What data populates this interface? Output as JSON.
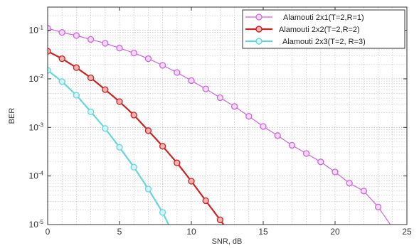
{
  "chart_data": {
    "type": "line",
    "xlabel": "SNR, dB",
    "ylabel": "BER",
    "xlim": [
      0,
      25
    ],
    "ylim": [
      1e-05,
      0.3
    ],
    "yscale": "log",
    "grid": true,
    "grid_style": "dotted",
    "legend_placement": "top-right",
    "x_ticks": [
      {
        "value": 0,
        "label": "0"
      },
      {
        "value": 5,
        "label": "5"
      },
      {
        "value": 10,
        "label": "10"
      },
      {
        "value": 15,
        "label": "15"
      },
      {
        "value": 20,
        "label": "20"
      },
      {
        "value": 25,
        "label": "25"
      }
    ],
    "y_ticks": [
      {
        "value": 0.1,
        "base": "10",
        "exp": "-1"
      },
      {
        "value": 0.01,
        "base": "10",
        "exp": "-2"
      },
      {
        "value": 0.001,
        "base": "10",
        "exp": "-3"
      },
      {
        "value": 0.0001,
        "base": "10",
        "exp": "-4"
      },
      {
        "value": 1e-05,
        "base": "10",
        "exp": "-5"
      }
    ],
    "series": [
      {
        "name": "Alamouti 2x1(T=2,R=1)",
        "color": "#cc66dd",
        "marker_fill": "#f3d8f8",
        "line_width": 1.2,
        "x": [
          0,
          1,
          2,
          3,
          4,
          5,
          6,
          7,
          8,
          9,
          10,
          11,
          12,
          13,
          14,
          15,
          16,
          17,
          18,
          19,
          20,
          21,
          22,
          23,
          24
        ],
        "y": [
          0.11,
          0.09,
          0.078,
          0.065,
          0.054,
          0.043,
          0.034,
          0.026,
          0.019,
          0.0135,
          0.0092,
          0.0062,
          0.0041,
          0.0027,
          0.0017,
          0.00105,
          0.00068,
          0.00043,
          0.00029,
          0.000195,
          0.000121,
          7.1e-05,
          4.9e-05,
          2.3e-05,
          8.6e-06
        ]
      },
      {
        "name": "Alamouti 2x2(T=2,R=2)",
        "color": "#cc2222",
        "marker_fill": "#f2b0b0",
        "line_width": 2.2,
        "x": [
          0,
          1,
          2,
          3,
          4,
          5,
          6,
          7,
          8,
          9,
          10,
          11,
          12,
          13
        ],
        "y": [
          0.037,
          0.026,
          0.017,
          0.0105,
          0.006,
          0.0034,
          0.0018,
          0.00086,
          0.00041,
          0.000186,
          7.8e-05,
          3.1e-05,
          1.25e-05,
          4.9e-06
        ]
      },
      {
        "name": "Alamouti 2x3(T=2, R=3)",
        "color": "#66d6dd",
        "marker_fill": "#d4f4f6",
        "line_width": 2.2,
        "x": [
          0,
          1,
          2,
          3,
          4,
          5,
          6,
          7,
          8,
          9
        ],
        "y": [
          0.015,
          0.0088,
          0.0046,
          0.0021,
          0.00095,
          0.00039,
          0.000152,
          5.4e-05,
          1.78e-05,
          4.4e-06
        ]
      }
    ]
  }
}
